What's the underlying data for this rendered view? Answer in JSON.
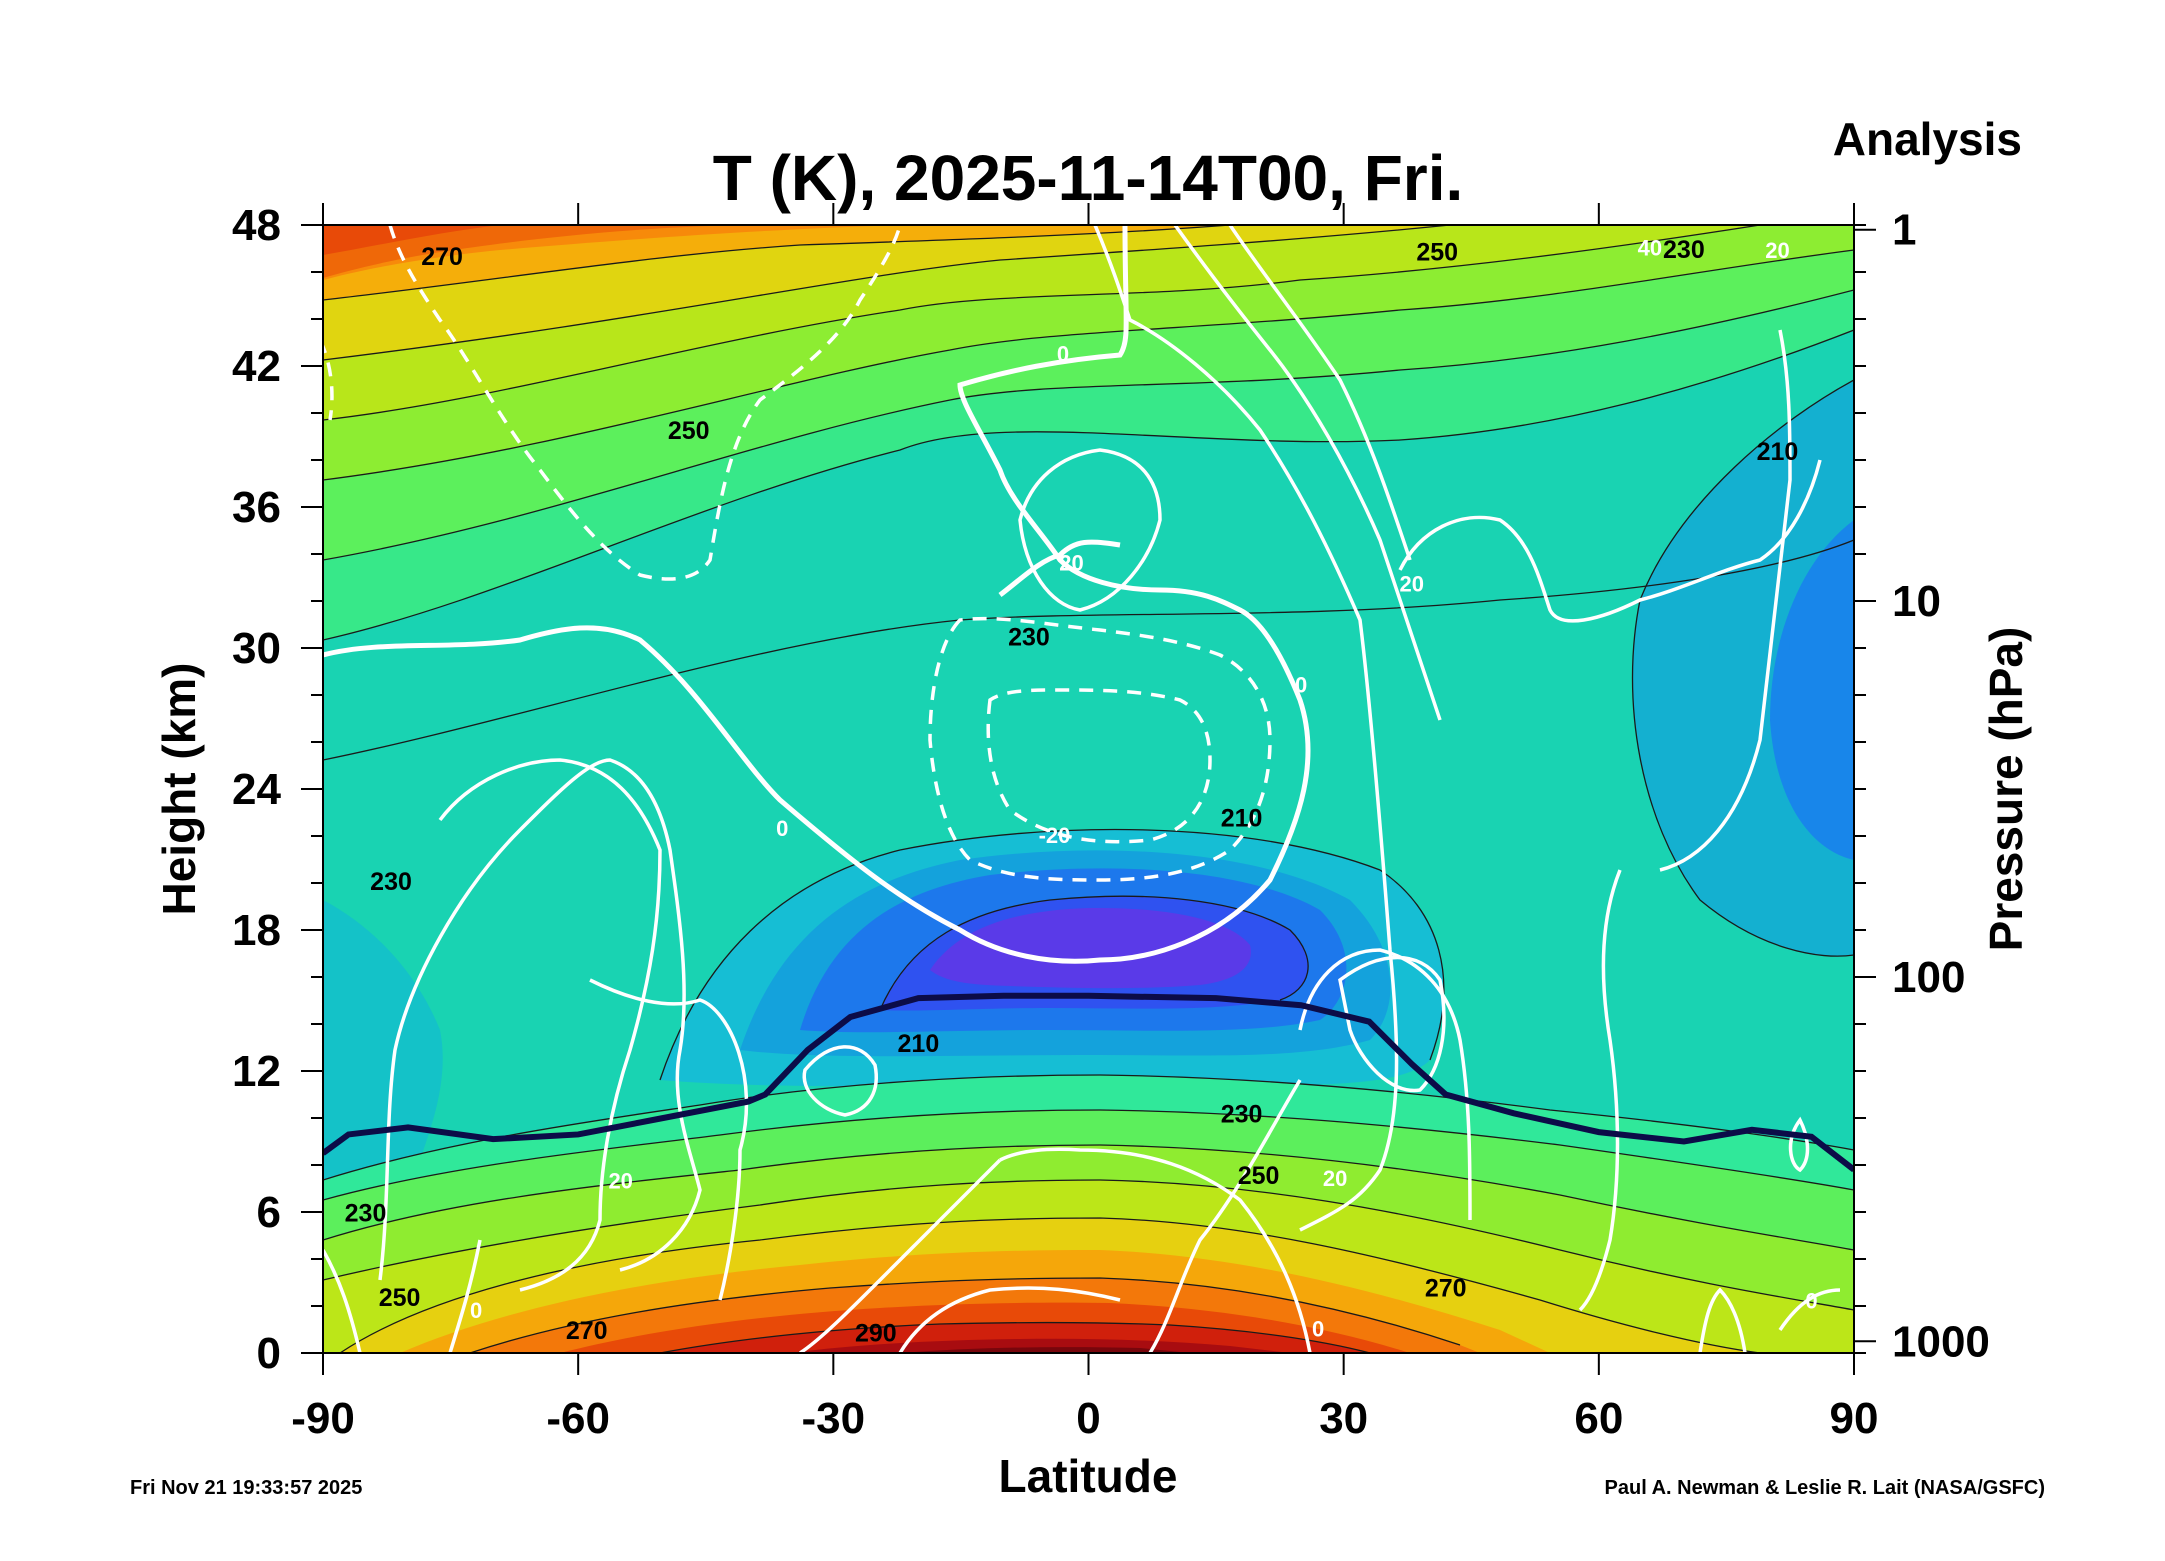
{
  "chart_data": {
    "type": "heatmap",
    "title": "T (K), 2025-11-14T00, Fri.",
    "subtitle": "Analysis",
    "xlabel": "Latitude",
    "ylabel": "Height (km)",
    "y2label": "Pressure (hPa)",
    "xlim": [
      -90,
      90
    ],
    "ylim": [
      0,
      48
    ],
    "x_ticks": [
      -90,
      -60,
      -30,
      0,
      30,
      60,
      90
    ],
    "x_tick_labels": [
      "-90",
      "-60",
      "-30",
      "0",
      "30",
      "60",
      "90"
    ],
    "y_ticks": [
      0,
      6,
      12,
      18,
      24,
      30,
      36,
      42,
      48
    ],
    "y_tick_labels": [
      "0",
      "6",
      "12",
      "18",
      "24",
      "30",
      "36",
      "42",
      "48"
    ],
    "pressure_ticks": [
      {
        "label": "1",
        "height_km": 47.8
      },
      {
        "label": "10",
        "height_km": 32.0
      },
      {
        "label": "100",
        "height_km": 16.0
      },
      {
        "label": "1000",
        "height_km": 0.5
      }
    ],
    "temperature_contour_labels": [
      {
        "text": "270",
        "lat": -76,
        "z": 46.3
      },
      {
        "text": "250",
        "lat": -47,
        "z": 38.9
      },
      {
        "text": "230",
        "lat": -82,
        "z": 19.7
      },
      {
        "text": "210",
        "lat": -20,
        "z": 12.8
      },
      {
        "text": "230",
        "lat": -7,
        "z": 30.1
      },
      {
        "text": "210",
        "lat": 18,
        "z": 22.4
      },
      {
        "text": "250",
        "lat": 41,
        "z": 46.5
      },
      {
        "text": "230",
        "lat": 70,
        "z": 46.6
      },
      {
        "text": "210",
        "lat": 81,
        "z": 38.0
      },
      {
        "text": "230",
        "lat": 18,
        "z": 9.8
      },
      {
        "text": "250",
        "lat": 20,
        "z": 7.2
      },
      {
        "text": "270",
        "lat": 42,
        "z": 2.4
      },
      {
        "text": "230",
        "lat": -85,
        "z": 5.6
      },
      {
        "text": "250",
        "lat": -81,
        "z": 2.0
      },
      {
        "text": "270",
        "lat": -59,
        "z": 0.6
      },
      {
        "text": "290",
        "lat": -25,
        "z": 0.5
      }
    ],
    "wind_contour_labels": [
      {
        "text": "0",
        "lat": -3,
        "z": 42.2
      },
      {
        "text": "20",
        "lat": -2,
        "z": 33.3
      },
      {
        "text": "0",
        "lat": 25,
        "z": 28.1
      },
      {
        "text": "20",
        "lat": 38,
        "z": 32.4
      },
      {
        "text": "40",
        "lat": 66,
        "z": 46.7
      },
      {
        "text": "20",
        "lat": 81,
        "z": 46.6
      },
      {
        "text": "0",
        "lat": -36,
        "z": 22.0
      },
      {
        "text": "-20",
        "lat": -4,
        "z": 21.7
      },
      {
        "text": "20",
        "lat": -55,
        "z": 7.0
      },
      {
        "text": "20",
        "lat": 29,
        "z": 7.1
      },
      {
        "text": "0",
        "lat": 27,
        "z": 0.7
      },
      {
        "text": "0",
        "lat": -72,
        "z": 1.5
      },
      {
        "text": "0",
        "lat": 85,
        "z": 1.9
      }
    ],
    "tropopause": [
      {
        "lat": -90,
        "z": 8.5
      },
      {
        "lat": -87,
        "z": 9.3
      },
      {
        "lat": -80,
        "z": 9.6
      },
      {
        "lat": -70,
        "z": 9.1
      },
      {
        "lat": -60,
        "z": 9.3
      },
      {
        "lat": -50,
        "z": 10.0
      },
      {
        "lat": -40,
        "z": 10.7
      },
      {
        "lat": -38,
        "z": 11.0
      },
      {
        "lat": -33,
        "z": 12.9
      },
      {
        "lat": -28,
        "z": 14.3
      },
      {
        "lat": -20,
        "z": 15.1
      },
      {
        "lat": -10,
        "z": 15.2
      },
      {
        "lat": 0,
        "z": 15.2
      },
      {
        "lat": 15,
        "z": 15.1
      },
      {
        "lat": 25,
        "z": 14.8
      },
      {
        "lat": 33,
        "z": 14.1
      },
      {
        "lat": 38,
        "z": 12.3
      },
      {
        "lat": 42,
        "z": 11.0
      },
      {
        "lat": 50,
        "z": 10.2
      },
      {
        "lat": 60,
        "z": 9.4
      },
      {
        "lat": 70,
        "z": 9.0
      },
      {
        "lat": 78,
        "z": 9.5
      },
      {
        "lat": 85,
        "z": 9.2
      },
      {
        "lat": 90,
        "z": 7.8
      }
    ],
    "footer_left": "Fri Nov 21 19:33:57 2025",
    "footer_right": "Paul A. Newman & Leslie R. Lait (NASA/GSFC)"
  }
}
